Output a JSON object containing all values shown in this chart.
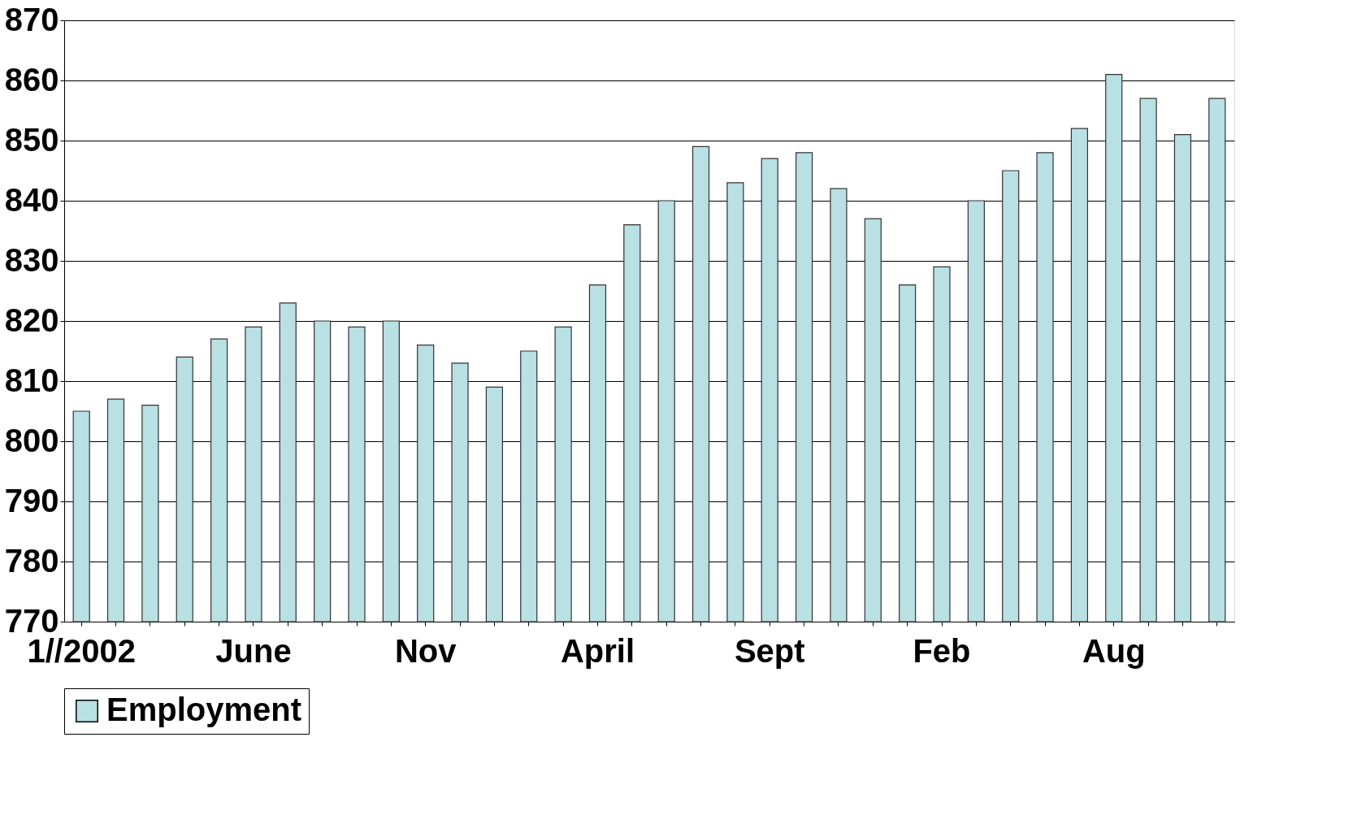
{
  "chart_data": {
    "type": "bar",
    "categories": [
      "1//2002",
      null,
      null,
      null,
      null,
      "June",
      null,
      null,
      null,
      null,
      "Nov",
      null,
      null,
      null,
      null,
      "April",
      null,
      null,
      null,
      null,
      "Sept",
      null,
      null,
      null,
      null,
      "Feb",
      null,
      null,
      null,
      null,
      "Aug",
      null,
      null,
      null
    ],
    "series": [
      {
        "name": "Employment",
        "color": "#b9e0e3",
        "values": [
          805,
          807,
          806,
          814,
          817,
          819,
          823,
          820,
          819,
          820,
          816,
          813,
          809,
          815,
          819,
          826,
          836,
          840,
          849,
          843,
          847,
          848,
          842,
          837,
          826,
          829,
          840,
          845,
          848,
          852,
          861,
          857,
          851,
          857
        ]
      }
    ],
    "ylim": [
      770,
      870
    ],
    "yticks": [
      770,
      780,
      790,
      800,
      810,
      820,
      830,
      840,
      850,
      860,
      870
    ],
    "grid": "y",
    "legend": "bottom"
  }
}
